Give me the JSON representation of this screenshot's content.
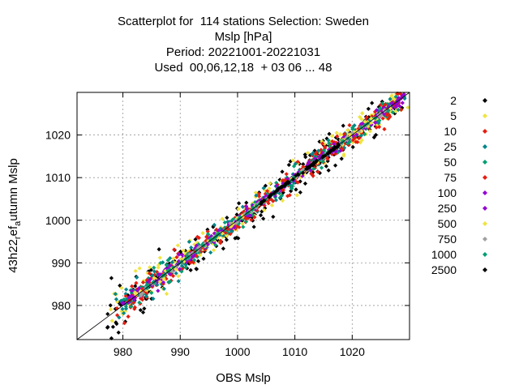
{
  "chart_data": {
    "type": "scatter",
    "title_lines": [
      "Scatterplot for  114 stations Selection: Sweden",
      "Mslp [hPa]",
      "Period: 20221001-20221031",
      "Used  00,06,12,18  + 03 06 ... 48"
    ],
    "xlabel": "OBS Mslp",
    "ylabel_main": "43h22",
    "ylabel_sub1": "r",
    "ylabel_mid": "ef",
    "ylabel_sub2": "a",
    "ylabel_tail": "utumn Mslp",
    "xlim": [
      972,
      1030
    ],
    "ylim": [
      972,
      1030
    ],
    "xticks": [
      980,
      990,
      1000,
      1010,
      1020
    ],
    "yticks": [
      980,
      990,
      1000,
      1010,
      1020
    ],
    "grid": true,
    "diagonal": true,
    "legend_position": "right",
    "series": [
      {
        "name": "2",
        "color": "#000000",
        "low": 978,
        "high": 1029,
        "spread": 6.0
      },
      {
        "name": "5",
        "color": "#f0e442",
        "low": 978,
        "high": 1029,
        "spread": 5.0
      },
      {
        "name": "10",
        "color": "#e51e10",
        "low": 979,
        "high": 1029,
        "spread": 4.2
      },
      {
        "name": "25",
        "color": "#00868b",
        "low": 979,
        "high": 1029,
        "spread": 3.6
      },
      {
        "name": "50",
        "color": "#009e73",
        "low": 980,
        "high": 1029,
        "spread": 3.0
      },
      {
        "name": "75",
        "color": "#e51e10",
        "low": 980,
        "high": 1029,
        "spread": 2.4
      },
      {
        "name": "100",
        "color": "#9400d3",
        "low": 980,
        "high": 1029,
        "spread": 2.0
      },
      {
        "name": "250",
        "color": "#9400d3",
        "low": 981,
        "high": 1028,
        "spread": 1.4
      },
      {
        "name": "500",
        "color": "#f0e442",
        "low": 982,
        "high": 1027,
        "spread": 1.0
      },
      {
        "name": "750",
        "color": "#a0a0a0",
        "low": 983,
        "high": 1026,
        "spread": 0.7
      },
      {
        "name": "1000",
        "color": "#009e73",
        "low": 984,
        "high": 1025,
        "spread": 0.5
      },
      {
        "name": "2500",
        "color": "#000000",
        "low": 1004,
        "high": 1018,
        "spread": 0.4
      }
    ]
  }
}
